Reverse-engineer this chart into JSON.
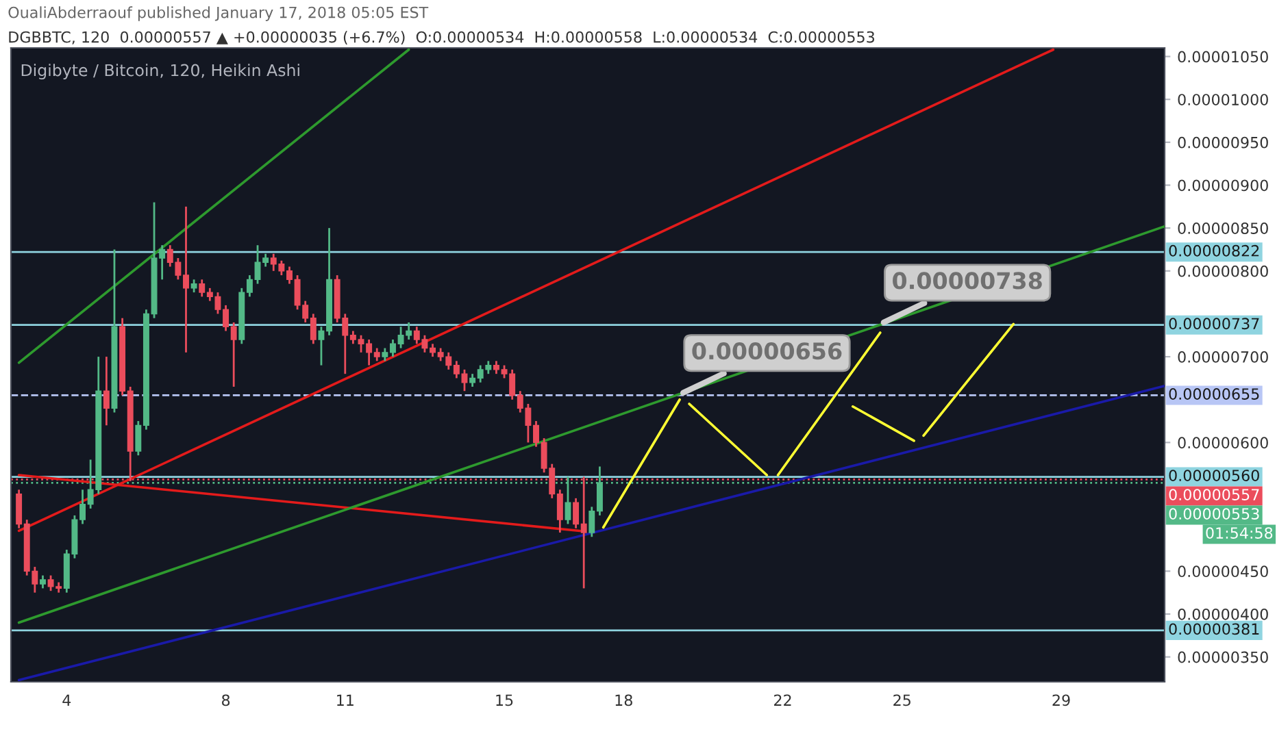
{
  "chart_data": {
    "type": "candlestick",
    "title": "Digibyte / Bitcoin, 120, Heikin Ashi",
    "subtitle": "DGBBTC, 120  0.00000557 ▲ +0.00000035 (+6.7%)  O:0.00000534  H:0.00000558  L:0.00000534  C:0.00000553",
    "annotations": [
      "OualiAbderraouf published January 17, 2018 05:05 EST",
      "01:54:58",
      {
        "text": "0.00000656",
        "x": 19.41,
        "y": 6.56e-06
      },
      {
        "text": "0.00000738",
        "x": 24.45,
        "y": 7.38e-06
      }
    ],
    "xlim": [
      2.6,
      31.6
    ],
    "xticks": [
      4,
      8,
      11,
      15,
      18,
      22,
      25,
      29
    ],
    "ylim": [
      3.21e-06,
      1.06e-05
    ],
    "yticks": [
      {
        "value": 3.5e-06,
        "label": "0.00000350"
      },
      {
        "value": 4e-06,
        "label": "0.00000400"
      },
      {
        "value": 4.5e-06,
        "label": "0.00000450"
      },
      {
        "value": 6e-06,
        "label": "0.00000600"
      },
      {
        "value": 7e-06,
        "label": "0.00000700"
      },
      {
        "value": 8e-06,
        "label": "0.00000800"
      },
      {
        "value": 8.5e-06,
        "label": "0.00000850"
      },
      {
        "value": 9e-06,
        "label": "0.00000900"
      },
      {
        "value": 9.5e-06,
        "label": "0.00000950"
      },
      {
        "value": 1e-05,
        "label": "0.00001000"
      },
      {
        "value": 1.05e-05,
        "label": "0.00001050"
      }
    ],
    "ref_lines": [
      {
        "axis": "y",
        "value": 8.22e-06,
        "label": "0.00000822",
        "color": "#8fd4e0",
        "line_style": "solid"
      },
      {
        "axis": "y",
        "value": 7.37e-06,
        "label": "0.00000737",
        "color": "#8fd4e0",
        "line_style": "solid"
      },
      {
        "axis": "y",
        "value": 6.55e-06,
        "label": "0.00000655",
        "color": "#b8c6f5",
        "line_style": "dashed"
      },
      {
        "axis": "y",
        "value": 5.6e-06,
        "label": "0.00000560",
        "color": "#8fd4e0",
        "line_style": "solid"
      },
      {
        "axis": "y",
        "value": 5.57e-06,
        "label": "0.00000557",
        "color": "#eb4d5c",
        "line_style": "dotted"
      },
      {
        "axis": "y",
        "value": 5.53e-06,
        "label": "0.00000553",
        "color": "#53b987",
        "line_style": "dotted"
      },
      {
        "axis": "y",
        "value": 3.81e-06,
        "label": "0.00000381",
        "color": "#8fd4e0",
        "line_style": "solid"
      }
    ],
    "series": [
      {
        "type": "line",
        "color": "#e31b1b",
        "x": [
          2.8,
          28.8
        ],
        "values": [
          4.97e-06,
          1.058e-05
        ]
      },
      {
        "type": "line",
        "color": "#e31b1b",
        "x": [
          2.8,
          16.9
        ],
        "values": [
          5.62e-06,
          4.97e-06
        ]
      },
      {
        "type": "line",
        "color": "#2e9a2e",
        "x": [
          2.8,
          12.6
        ],
        "values": [
          6.93e-06,
          1.058e-05
        ]
      },
      {
        "type": "line",
        "color": "#2e9a2e",
        "x": [
          2.8,
          31.6
        ],
        "values": [
          3.9e-06,
          8.52e-06
        ]
      },
      {
        "type": "line",
        "color": "#1a1aa8",
        "x": [
          2.8,
          31.6
        ],
        "values": [
          3.23e-06,
          6.66e-06
        ]
      },
      {
        "type": "line",
        "color": "#ffff33",
        "x": [
          17.49,
          19.41
        ],
        "values": [
          5.01e-06,
          6.5e-06
        ]
      },
      {
        "type": "line",
        "color": "#ffff33",
        "x": [
          19.65,
          21.6
        ],
        "values": [
          6.45e-06,
          5.62e-06
        ]
      },
      {
        "type": "line",
        "color": "#ffff33",
        "x": [
          21.88,
          24.45
        ],
        "values": [
          5.62e-06,
          7.28e-06
        ]
      },
      {
        "type": "line",
        "color": "#ffff33",
        "x": [
          23.76,
          25.3
        ],
        "values": [
          6.42e-06,
          6.02e-06
        ]
      },
      {
        "type": "line",
        "color": "#ffff33",
        "x": [
          25.54,
          27.8
        ],
        "values": [
          6.08e-06,
          7.38e-06
        ]
      },
      {
        "x": [
          2.8,
          3,
          3.2,
          3.4,
          3.6,
          3.8,
          4,
          4.2,
          4.4,
          4.6,
          4.8,
          5,
          5.2,
          5.4,
          5.6,
          5.8,
          6,
          6.2,
          6.4,
          6.6,
          6.8,
          7,
          7.2,
          7.4,
          7.6,
          7.8,
          8,
          8.2,
          8.4,
          8.6,
          8.8,
          9,
          9.2,
          9.4,
          9.6,
          9.8,
          10,
          10.2,
          10.4,
          10.6,
          10.8,
          11,
          11.2,
          11.4,
          11.6,
          11.8,
          12,
          12.2,
          12.4,
          12.6,
          12.8,
          13,
          13.2,
          13.4,
          13.6,
          13.8,
          14,
          14.2,
          14.4,
          14.6,
          14.8,
          15,
          15.2,
          15.4,
          15.6,
          15.8,
          16,
          16.2,
          16.4,
          16.6,
          16.8,
          17,
          17.2,
          17.4
        ],
        "ohlc": [
          [
            5.4e-06,
            5.45e-06,
            5e-06,
            5.05e-06
          ],
          [
            5.05e-06,
            5.1e-06,
            4.45e-06,
            4.5e-06
          ],
          [
            4.5e-06,
            4.55e-06,
            4.25e-06,
            4.35e-06
          ],
          [
            4.35e-06,
            4.45e-06,
            4.3e-06,
            4.4e-06
          ],
          [
            4.4e-06,
            4.45e-06,
            4.27e-06,
            4.32e-06
          ],
          [
            4.32e-06,
            4.37e-06,
            4.25e-06,
            4.3e-06
          ],
          [
            4.3e-06,
            4.75e-06,
            4.25e-06,
            4.7e-06
          ],
          [
            4.7e-06,
            5.15e-06,
            4.65e-06,
            5.1e-06
          ],
          [
            5.1e-06,
            5.45e-06,
            5.05e-06,
            5.28e-06
          ],
          [
            5.28e-06,
            5.8e-06,
            5.23e-06,
            5.45e-06
          ],
          [
            5.45e-06,
            7e-06,
            5.4e-06,
            6.6e-06
          ],
          [
            6.6e-06,
            7e-06,
            6.2e-06,
            6.4e-06
          ],
          [
            6.4e-06,
            8.25e-06,
            6.35e-06,
            7.35e-06
          ],
          [
            7.35e-06,
            7.45e-06,
            6.55e-06,
            6.6e-06
          ],
          [
            6.6e-06,
            6.65e-06,
            5.55e-06,
            5.9e-06
          ],
          [
            5.9e-06,
            6.25e-06,
            5.85e-06,
            6.2e-06
          ],
          [
            6.2e-06,
            7.55e-06,
            6.15e-06,
            7.5e-06
          ],
          [
            7.5e-06,
            8.8e-06,
            7.45e-06,
            8.15e-06
          ],
          [
            8.15e-06,
            8.3e-06,
            7.9e-06,
            8.25e-06
          ],
          [
            8.25e-06,
            8.3e-06,
            8.05e-06,
            8.1e-06
          ],
          [
            8.1e-06,
            8.15e-06,
            7.9e-06,
            7.95e-06
          ],
          [
            7.95e-06,
            8.75e-06,
            7.05e-06,
            7.8e-06
          ],
          [
            7.8e-06,
            7.9e-06,
            7.75e-06,
            7.85e-06
          ],
          [
            7.85e-06,
            7.9e-06,
            7.7e-06,
            7.75e-06
          ],
          [
            7.75e-06,
            7.8e-06,
            7.65e-06,
            7.7e-06
          ],
          [
            7.7e-06,
            7.75e-06,
            7.5e-06,
            7.55e-06
          ],
          [
            7.55e-06,
            7.6e-06,
            7.3e-06,
            7.35e-06
          ],
          [
            7.35e-06,
            7.4e-06,
            6.65e-06,
            7.2e-06
          ],
          [
            7.2e-06,
            7.8e-06,
            7.15e-06,
            7.75e-06
          ],
          [
            7.75e-06,
            7.95e-06,
            7.7e-06,
            7.9e-06
          ],
          [
            7.9e-06,
            8.3e-06,
            7.85e-06,
            8.1e-06
          ],
          [
            8.1e-06,
            8.2e-06,
            8.05e-06,
            8.15e-06
          ],
          [
            8.15e-06,
            8.2e-06,
            8e-06,
            8.08e-06
          ],
          [
            8.08e-06,
            8.12e-06,
            7.95e-06,
            8e-06
          ],
          [
            8e-06,
            8.05e-06,
            7.85e-06,
            7.9e-06
          ],
          [
            7.9e-06,
            7.95e-06,
            7.55e-06,
            7.6e-06
          ],
          [
            7.6e-06,
            7.65e-06,
            7.4e-06,
            7.45e-06
          ],
          [
            7.45e-06,
            7.5e-06,
            7.15e-06,
            7.2e-06
          ],
          [
            7.2e-06,
            7.35e-06,
            6.9e-06,
            7.3e-06
          ],
          [
            7.3e-06,
            8.5e-06,
            7.25e-06,
            7.9e-06
          ],
          [
            7.9e-06,
            7.95e-06,
            7.4e-06,
            7.45e-06
          ],
          [
            7.45e-06,
            7.5e-06,
            6.8e-06,
            7.25e-06
          ],
          [
            7.25e-06,
            7.3e-06,
            7.15e-06,
            7.2e-06
          ],
          [
            7.2e-06,
            7.25e-06,
            7.05e-06,
            7.15e-06
          ],
          [
            7.15e-06,
            7.2e-06,
            6.9e-06,
            7.05e-06
          ],
          [
            7.05e-06,
            7.1e-06,
            6.95e-06,
            7e-06
          ],
          [
            7e-06,
            7.1e-06,
            6.95e-06,
            7.05e-06
          ],
          [
            7.05e-06,
            7.2e-06,
            7e-06,
            7.15e-06
          ],
          [
            7.15e-06,
            7.35e-06,
            7.1e-06,
            7.25e-06
          ],
          [
            7.25e-06,
            7.4e-06,
            7.2e-06,
            7.3e-06
          ],
          [
            7.3e-06,
            7.35e-06,
            7.15e-06,
            7.2e-06
          ],
          [
            7.2e-06,
            7.25e-06,
            7.05e-06,
            7.1e-06
          ],
          [
            7.1e-06,
            7.15e-06,
            7e-06,
            7.05e-06
          ],
          [
            7.05e-06,
            7.1e-06,
            6.95e-06,
            7e-06
          ],
          [
            7e-06,
            7.05e-06,
            6.85e-06,
            6.9e-06
          ],
          [
            6.9e-06,
            6.95e-06,
            6.75e-06,
            6.8e-06
          ],
          [
            6.8e-06,
            6.85e-06,
            6.6e-06,
            6.7e-06
          ],
          [
            6.7e-06,
            6.8e-06,
            6.65e-06,
            6.75e-06
          ],
          [
            6.75e-06,
            6.9e-06,
            6.7e-06,
            6.85e-06
          ],
          [
            6.85e-06,
            6.95e-06,
            6.8e-06,
            6.9e-06
          ],
          [
            6.9e-06,
            6.95e-06,
            6.8e-06,
            6.85e-06
          ],
          [
            6.85e-06,
            6.9e-06,
            6.75e-06,
            6.8e-06
          ],
          [
            6.8e-06,
            6.85e-06,
            6.5e-06,
            6.55e-06
          ],
          [
            6.55e-06,
            6.6e-06,
            6.35e-06,
            6.4e-06
          ],
          [
            6.4e-06,
            6.45e-06,
            6e-06,
            6.2e-06
          ],
          [
            6.2e-06,
            6.25e-06,
            5.95e-06,
            6e-06
          ],
          [
            6e-06,
            6.05e-06,
            5.65e-06,
            5.7e-06
          ],
          [
            5.7e-06,
            5.75e-06,
            5.35e-06,
            5.4e-06
          ],
          [
            5.4e-06,
            5.45e-06,
            4.95e-06,
            5.1e-06
          ],
          [
            5.1e-06,
            5.6e-06,
            5.05e-06,
            5.3e-06
          ],
          [
            5.3e-06,
            5.35e-06,
            5e-06,
            5.05e-06
          ],
          [
            5.05e-06,
            5.6e-06,
            4.3e-06,
            4.95e-06
          ],
          [
            4.95e-06,
            5.25e-06,
            4.9e-06,
            5.2e-06
          ],
          [
            5.2e-06,
            5.72e-06,
            5.15e-06,
            5.53e-06
          ]
        ],
        "colors": [
          "#eb4d5c",
          "#eb4d5c",
          "#eb4d5c",
          "#53b987",
          "#eb4d5c",
          "#eb4d5c",
          "#53b987",
          "#53b987",
          "#53b987",
          "#53b987",
          "#53b987",
          "#eb4d5c",
          "#53b987",
          "#eb4d5c",
          "#eb4d5c",
          "#53b987",
          "#53b987",
          "#53b987",
          "#53b987",
          "#eb4d5c",
          "#eb4d5c",
          "#eb4d5c",
          "#53b987",
          "#eb4d5c",
          "#eb4d5c",
          "#eb4d5c",
          "#eb4d5c",
          "#eb4d5c",
          "#53b987",
          "#53b987",
          "#53b987",
          "#53b987",
          "#eb4d5c",
          "#eb4d5c",
          "#eb4d5c",
          "#eb4d5c",
          "#eb4d5c",
          "#eb4d5c",
          "#53b987",
          "#53b987",
          "#eb4d5c",
          "#eb4d5c",
          "#eb4d5c",
          "#eb4d5c",
          "#eb4d5c",
          "#eb4d5c",
          "#53b987",
          "#53b987",
          "#53b987",
          "#53b987",
          "#eb4d5c",
          "#eb4d5c",
          "#eb4d5c",
          "#eb4d5c",
          "#eb4d5c",
          "#eb4d5c",
          "#eb4d5c",
          "#53b987",
          "#53b987",
          "#53b987",
          "#eb4d5c",
          "#eb4d5c",
          "#eb4d5c",
          "#eb4d5c",
          "#eb4d5c",
          "#eb4d5c",
          "#eb4d5c",
          "#eb4d5c",
          "#eb4d5c",
          "#53b987",
          "#eb4d5c",
          "#eb4d5c",
          "#53b987",
          "#53b987"
        ]
      }
    ]
  }
}
